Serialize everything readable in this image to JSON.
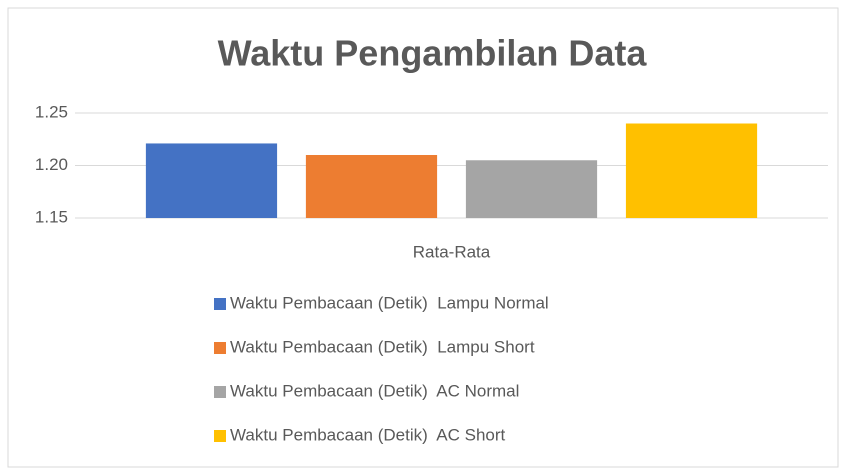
{
  "chart_data": {
    "type": "bar",
    "title": "Waktu Pengambilan Data",
    "categories": [
      "Rata-Rata"
    ],
    "series": [
      {
        "name": "Waktu Pembacaan (Detik)  Lampu Normal",
        "color": "#4472c4",
        "values": [
          1.221
        ]
      },
      {
        "name": "Waktu Pembacaan (Detik)  Lampu Short",
        "color": "#ed7d31",
        "values": [
          1.21
        ]
      },
      {
        "name": "Waktu Pembacaan (Detik)  AC Normal",
        "color": "#a5a5a5",
        "values": [
          1.205
        ]
      },
      {
        "name": "Waktu Pembacaan (Detik)  AC Short",
        "color": "#ffc000",
        "values": [
          1.24
        ]
      }
    ],
    "ylim": [
      1.15,
      1.25
    ],
    "yticks": [
      1.15,
      {
        "value": 1.2,
        "label": "1.20"
      },
      1.25
    ],
    "grid": true,
    "legend": "bottom"
  }
}
